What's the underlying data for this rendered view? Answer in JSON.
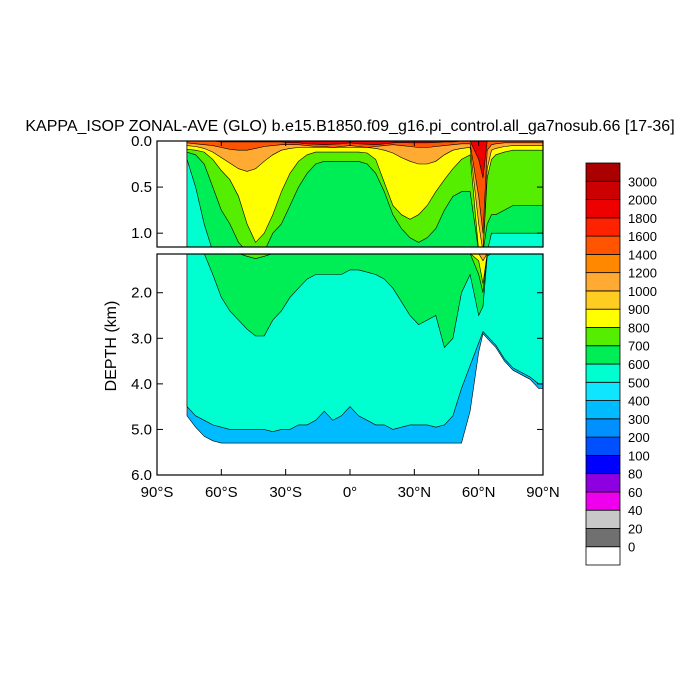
{
  "chart_data": {
    "type": "heatmap",
    "title": "KAPPA_ISOP ZONAL-AVE (GLO) b.e15.B1850.f09_g16.pi_control.all_ga7nosub.66 [17-36]",
    "xlabel": "",
    "ylabel": "DEPTH (km)",
    "xlim": [
      -90,
      90
    ],
    "upper_panel": {
      "ylim": [
        0.0,
        1.15
      ],
      "tick_labels": [
        "0.0",
        "0.5",
        "1.0"
      ],
      "ticks": [
        0.0,
        0.5,
        1.0
      ]
    },
    "lower_panel": {
      "ylim": [
        1.15,
        6.0
      ],
      "tick_labels": [
        "2.0",
        "3.0",
        "4.0",
        "5.0",
        "6.0"
      ],
      "ticks": [
        2.0,
        3.0,
        4.0,
        5.0,
        6.0
      ]
    },
    "x_ticks": [
      -90,
      -60,
      -30,
      0,
      30,
      60,
      90
    ],
    "x_tick_labels": [
      "90°S",
      "60°S",
      "30°S",
      "0°",
      "30°N",
      "60°N",
      "90°N"
    ],
    "colorbar": {
      "levels": [
        "0",
        "20",
        "40",
        "60",
        "80",
        "100",
        "200",
        "300",
        "400",
        "500",
        "600",
        "700",
        "800",
        "900",
        "1000",
        "1200",
        "1400",
        "1600",
        "1800",
        "2000",
        "3000"
      ],
      "colors": [
        "#ffffff",
        "#707070",
        "#c8c8c8",
        "#ee00ee",
        "#8e00e0",
        "#0000ff",
        "#0050ff",
        "#0090ff",
        "#00bbff",
        "#10e5ff",
        "#00ffd0",
        "#00ee55",
        "#55ee00",
        "#ffff00",
        "#ffcc22",
        "#ffaa33",
        "#ff8800",
        "#ff5500",
        "#ff2200",
        "#ee0000",
        "#cc0000",
        "#aa0000"
      ]
    },
    "bands": {
      "lats": [
        -76,
        -72,
        -68,
        -64,
        -60,
        -56,
        -52,
        -48,
        -44,
        -40,
        -36,
        -32,
        -28,
        -24,
        -20,
        -16,
        -12,
        -8,
        -4,
        0,
        4,
        8,
        12,
        16,
        20,
        24,
        28,
        32,
        36,
        40,
        44,
        48,
        52,
        56,
        60,
        62,
        64,
        66,
        68,
        72,
        76,
        80,
        84,
        88,
        90
      ],
      "bottom": [
        4.7,
        4.95,
        5.15,
        5.25,
        5.3,
        5.3,
        5.3,
        5.3,
        5.3,
        5.3,
        5.3,
        5.3,
        5.3,
        5.3,
        5.3,
        5.3,
        5.3,
        5.3,
        5.3,
        5.3,
        5.3,
        5.3,
        5.3,
        5.3,
        5.3,
        5.3,
        5.3,
        5.3,
        5.3,
        5.3,
        5.3,
        5.3,
        5.3,
        4.6,
        3.3,
        2.9,
        3.0,
        3.1,
        3.2,
        3.5,
        3.7,
        3.8,
        3.9,
        4.1,
        4.1
      ],
      "d400": [
        4.5,
        4.7,
        4.8,
        4.9,
        4.95,
        5.0,
        5.0,
        5.0,
        5.0,
        5.0,
        5.05,
        5.0,
        5.0,
        4.9,
        4.9,
        4.8,
        4.6,
        4.8,
        4.7,
        4.5,
        4.7,
        4.8,
        4.9,
        4.9,
        5.0,
        4.95,
        4.9,
        4.9,
        4.9,
        4.95,
        4.9,
        4.7,
        4.1,
        3.6,
        3.1,
        2.85,
        2.95,
        3.05,
        3.15,
        3.45,
        3.65,
        3.75,
        3.85,
        4.0,
        4.0
      ],
      "d600": [
        0.2,
        0.5,
        0.9,
        1.6,
        2.1,
        2.4,
        2.6,
        2.8,
        2.95,
        2.95,
        2.6,
        2.4,
        2.1,
        1.9,
        1.7,
        1.6,
        1.6,
        1.6,
        1.6,
        1.5,
        1.5,
        1.55,
        1.6,
        1.7,
        1.9,
        2.2,
        2.5,
        2.7,
        2.6,
        2.5,
        3.2,
        3.0,
        2.0,
        1.6,
        2.5,
        2.3,
        1.2,
        1.0,
        1.0,
        1.0,
        1.0,
        1.0,
        1.0,
        1.0,
        1.0
      ],
      "d700": [
        0.12,
        0.15,
        0.25,
        0.5,
        0.75,
        0.9,
        1.1,
        1.2,
        1.25,
        1.2,
        1.0,
        0.9,
        0.7,
        0.5,
        0.35,
        0.25,
        0.22,
        0.22,
        0.22,
        0.22,
        0.22,
        0.25,
        0.35,
        0.55,
        0.8,
        0.95,
        1.05,
        1.1,
        1.05,
        0.95,
        0.75,
        0.6,
        0.55,
        0.55,
        1.6,
        2.0,
        0.9,
        0.8,
        0.8,
        0.75,
        0.7,
        0.7,
        0.7,
        0.7,
        0.7
      ],
      "d800": [
        0.09,
        0.1,
        0.12,
        0.2,
        0.32,
        0.42,
        0.6,
        0.9,
        1.1,
        1.0,
        0.8,
        0.55,
        0.35,
        0.22,
        0.15,
        0.12,
        0.12,
        0.12,
        0.12,
        0.12,
        0.12,
        0.13,
        0.2,
        0.45,
        0.7,
        0.8,
        0.85,
        0.8,
        0.7,
        0.55,
        0.42,
        0.3,
        0.2,
        0.15,
        1.3,
        1.8,
        0.4,
        0.2,
        0.15,
        0.12,
        0.1,
        0.1,
        0.1,
        0.1,
        0.1
      ],
      "d1000": [
        0.05,
        0.06,
        0.08,
        0.12,
        0.18,
        0.24,
        0.3,
        0.33,
        0.3,
        0.22,
        0.15,
        0.1,
        0.08,
        0.07,
        0.07,
        0.07,
        0.07,
        0.07,
        0.07,
        0.07,
        0.07,
        0.07,
        0.08,
        0.1,
        0.13,
        0.18,
        0.22,
        0.25,
        0.25,
        0.22,
        0.15,
        0.1,
        0.08,
        0.07,
        0.9,
        1.3,
        0.3,
        0.1,
        0.08,
        0.06,
        0.05,
        0.05,
        0.05,
        0.05,
        0.05
      ],
      "d1400": [
        0.02,
        0.03,
        0.04,
        0.05,
        0.07,
        0.09,
        0.1,
        0.1,
        0.08,
        0.06,
        0.05,
        0.04,
        0.04,
        0.04,
        0.05,
        0.06,
        0.06,
        0.07,
        0.06,
        0.05,
        0.06,
        0.07,
        0.06,
        0.05,
        0.04,
        0.05,
        0.06,
        0.07,
        0.07,
        0.06,
        0.05,
        0.04,
        0.03,
        0.03,
        0.6,
        1.0,
        0.1,
        0.04,
        0.03,
        0.02,
        0.02,
        0.02,
        0.02,
        0.02,
        0.02
      ],
      "d2000": [
        0.0,
        0.0,
        0.0,
        0.0,
        0.01,
        0.01,
        0.01,
        0.01,
        0.01,
        0.01,
        0.01,
        0.01,
        0.02,
        0.02,
        0.03,
        0.035,
        0.04,
        0.035,
        0.03,
        0.02,
        0.03,
        0.035,
        0.04,
        0.03,
        0.02,
        0.015,
        0.02,
        0.02,
        0.02,
        0.015,
        0.01,
        0.01,
        0.0,
        0.0,
        0.2,
        0.4,
        0.0,
        0.0,
        0.0,
        0.0,
        0.0,
        0.0,
        0.0,
        0.0,
        0.0
      ]
    }
  }
}
